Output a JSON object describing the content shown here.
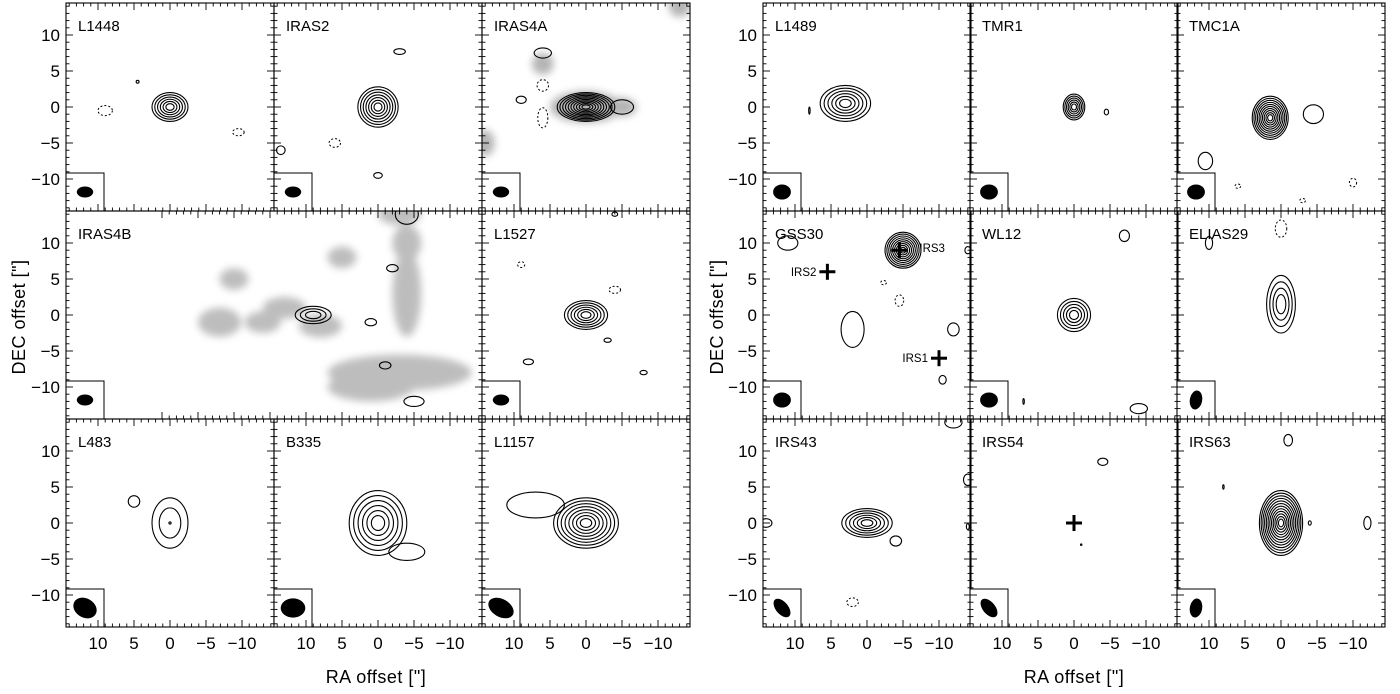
{
  "chart_data": {
    "type": "contour",
    "xlabel": "RA offset [\"]",
    "ylabel": "DEC offset [\"]",
    "xlim": [
      15,
      -15
    ],
    "ylim": [
      -14.5,
      14.5
    ],
    "xticks": [
      10,
      5,
      0,
      -5,
      -10
    ],
    "xtick_labels": [
      "10",
      "5",
      "0",
      "−5",
      "−10"
    ],
    "yticks": [
      10,
      5,
      0,
      -5,
      -10
    ],
    "ytick_labels": [
      "10",
      "5",
      "0",
      "−5",
      "−10"
    ],
    "sources": [
      {
        "name": "L1448",
        "peak": [
          0,
          0
        ],
        "levels": 6,
        "extent": [
          2.5,
          2.0
        ],
        "beam": [
          1.2,
          0.8,
          90
        ]
      },
      {
        "name": "IRAS2",
        "peak": [
          0,
          0
        ],
        "levels": 7,
        "extent": [
          2.8,
          2.8
        ],
        "beam": [
          1.2,
          0.8,
          90
        ]
      },
      {
        "name": "IRAS4A",
        "peak": [
          0,
          0
        ],
        "levels": 10,
        "extent": [
          4.0,
          2.0
        ],
        "beam": [
          1.2,
          0.8,
          90
        ]
      },
      {
        "name": "IRAS4B",
        "peak": [
          9,
          0
        ],
        "levels": 3,
        "extent": [
          2.5,
          1.2
        ],
        "beam": [
          1.2,
          0.8,
          90
        ]
      },
      {
        "name": "L1527",
        "peak": [
          0,
          0
        ],
        "levels": 6,
        "extent": [
          3.0,
          2.0
        ],
        "beam": [
          1.2,
          0.8,
          90
        ]
      },
      {
        "name": "L483",
        "peak": [
          0,
          0
        ],
        "levels": 2,
        "extent": [
          2.5,
          3.5
        ],
        "beam": [
          1.8,
          1.4,
          60
        ]
      },
      {
        "name": "B335",
        "peak": [
          0,
          0
        ],
        "levels": 6,
        "extent": [
          4.0,
          4.5
        ],
        "beam": [
          1.8,
          1.4,
          90
        ]
      },
      {
        "name": "L1157",
        "peak": [
          0,
          0
        ],
        "levels": 8,
        "extent": [
          4.5,
          3.5
        ],
        "beam": [
          2.0,
          1.3,
          60
        ]
      },
      {
        "name": "L1489",
        "peak": [
          3,
          0.5
        ],
        "levels": 6,
        "extent": [
          3.5,
          2.5
        ],
        "beam": [
          1.3,
          1.1,
          90
        ]
      },
      {
        "name": "TMR1",
        "peak": [
          0,
          0
        ],
        "levels": 6,
        "extent": [
          1.5,
          1.8
        ],
        "beam": [
          1.3,
          1.1,
          90
        ]
      },
      {
        "name": "TMC1A",
        "peak": [
          1.5,
          -1.5
        ],
        "levels": 10,
        "extent": [
          2.5,
          3.0
        ],
        "beam": [
          1.3,
          1.1,
          90
        ]
      },
      {
        "name": "GSS30",
        "peak": [
          -5,
          9
        ],
        "levels": 9,
        "extent": [
          2.5,
          2.5
        ],
        "beam": [
          1.3,
          1.1,
          90
        ]
      },
      {
        "name": "WL12",
        "peak": [
          0,
          0
        ],
        "levels": 5,
        "extent": [
          2.3,
          2.3
        ],
        "beam": [
          1.3,
          1.1,
          90
        ]
      },
      {
        "name": "ELIAS29",
        "peak": [
          0,
          1.5
        ],
        "levels": 4,
        "extent": [
          2.0,
          4.0
        ],
        "beam": [
          1.4,
          0.9,
          170
        ]
      },
      {
        "name": "IRS43",
        "peak": [
          0,
          0
        ],
        "levels": 6,
        "extent": [
          3.5,
          2.0
        ],
        "beam": [
          1.6,
          0.9,
          40
        ]
      },
      {
        "name": "IRS54",
        "peak": [
          0,
          0
        ],
        "levels": 0,
        "extent": [
          0,
          0
        ],
        "beam": [
          1.6,
          0.9,
          40
        ]
      },
      {
        "name": "IRS63",
        "peak": [
          0,
          0
        ],
        "levels": 12,
        "extent": [
          3.0,
          4.5
        ],
        "beam": [
          1.4,
          0.9,
          170
        ]
      }
    ],
    "markers": [
      {
        "panel": "GSS30",
        "label": "IRS3",
        "x": -4.5,
        "y": 9
      },
      {
        "panel": "GSS30",
        "label": "IRS2",
        "x": 5.5,
        "y": 6
      },
      {
        "panel": "GSS30",
        "label": "IRS1",
        "x": -10,
        "y": -6
      },
      {
        "panel": "IRS54",
        "label": "",
        "x": 0,
        "y": 0
      }
    ]
  }
}
